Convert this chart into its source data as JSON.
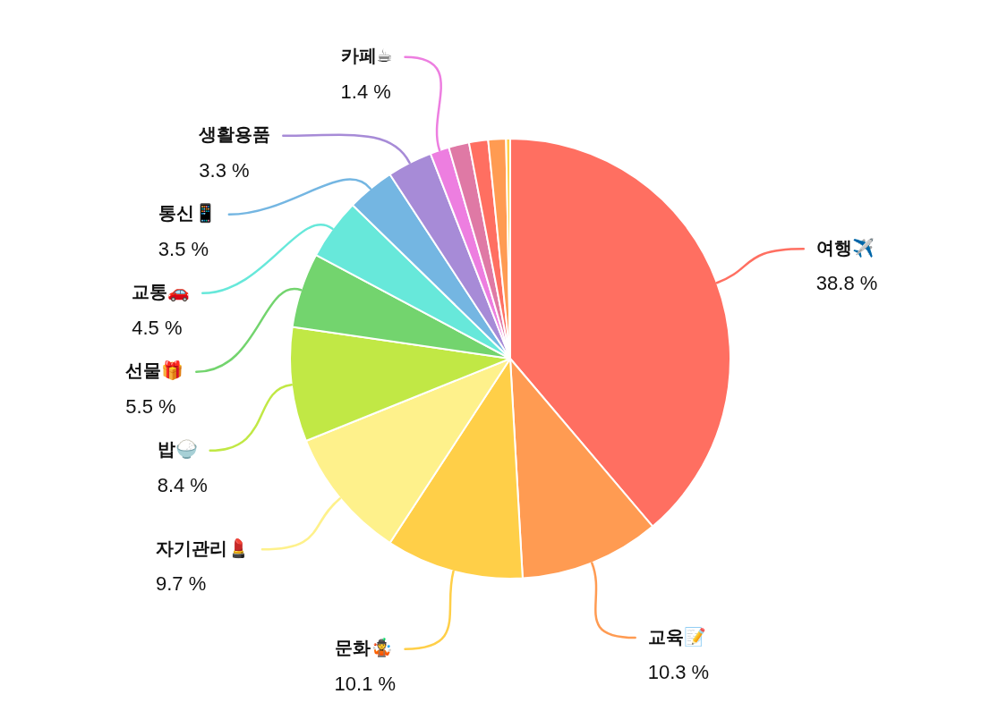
{
  "chart_data": {
    "type": "pie",
    "categories": [
      "여행✈️",
      "교육📝",
      "문화🤹",
      "자기관리💄",
      "밥🍚",
      "선물🎁",
      "교통🚗",
      "통신📱",
      "생활용품",
      "카페☕",
      null,
      null,
      null,
      null
    ],
    "values": [
      38.8,
      10.3,
      10.1,
      9.7,
      8.4,
      5.5,
      4.5,
      3.5,
      3.3,
      1.4,
      1.5,
      1.4,
      1.3,
      0.3
    ],
    "value_labels": [
      "38.8 %",
      "10.3 %",
      "10.1 %",
      "9.7 %",
      "8.4 %",
      "5.5 %",
      "4.5 %",
      "3.5 %",
      "3.3 %",
      "1.4 %",
      null,
      null,
      null,
      null
    ],
    "colors": [
      "#ff6f61",
      "#ff9b52",
      "#ffcf48",
      "#fef18b",
      "#c1e845",
      "#73d46e",
      "#67e8da",
      "#74b6e2",
      "#a78bd7",
      "#ed7ee0",
      "#df79a5",
      "#ff6f61",
      "#ff9b52",
      "#ffcf48"
    ],
    "legend": false
  }
}
